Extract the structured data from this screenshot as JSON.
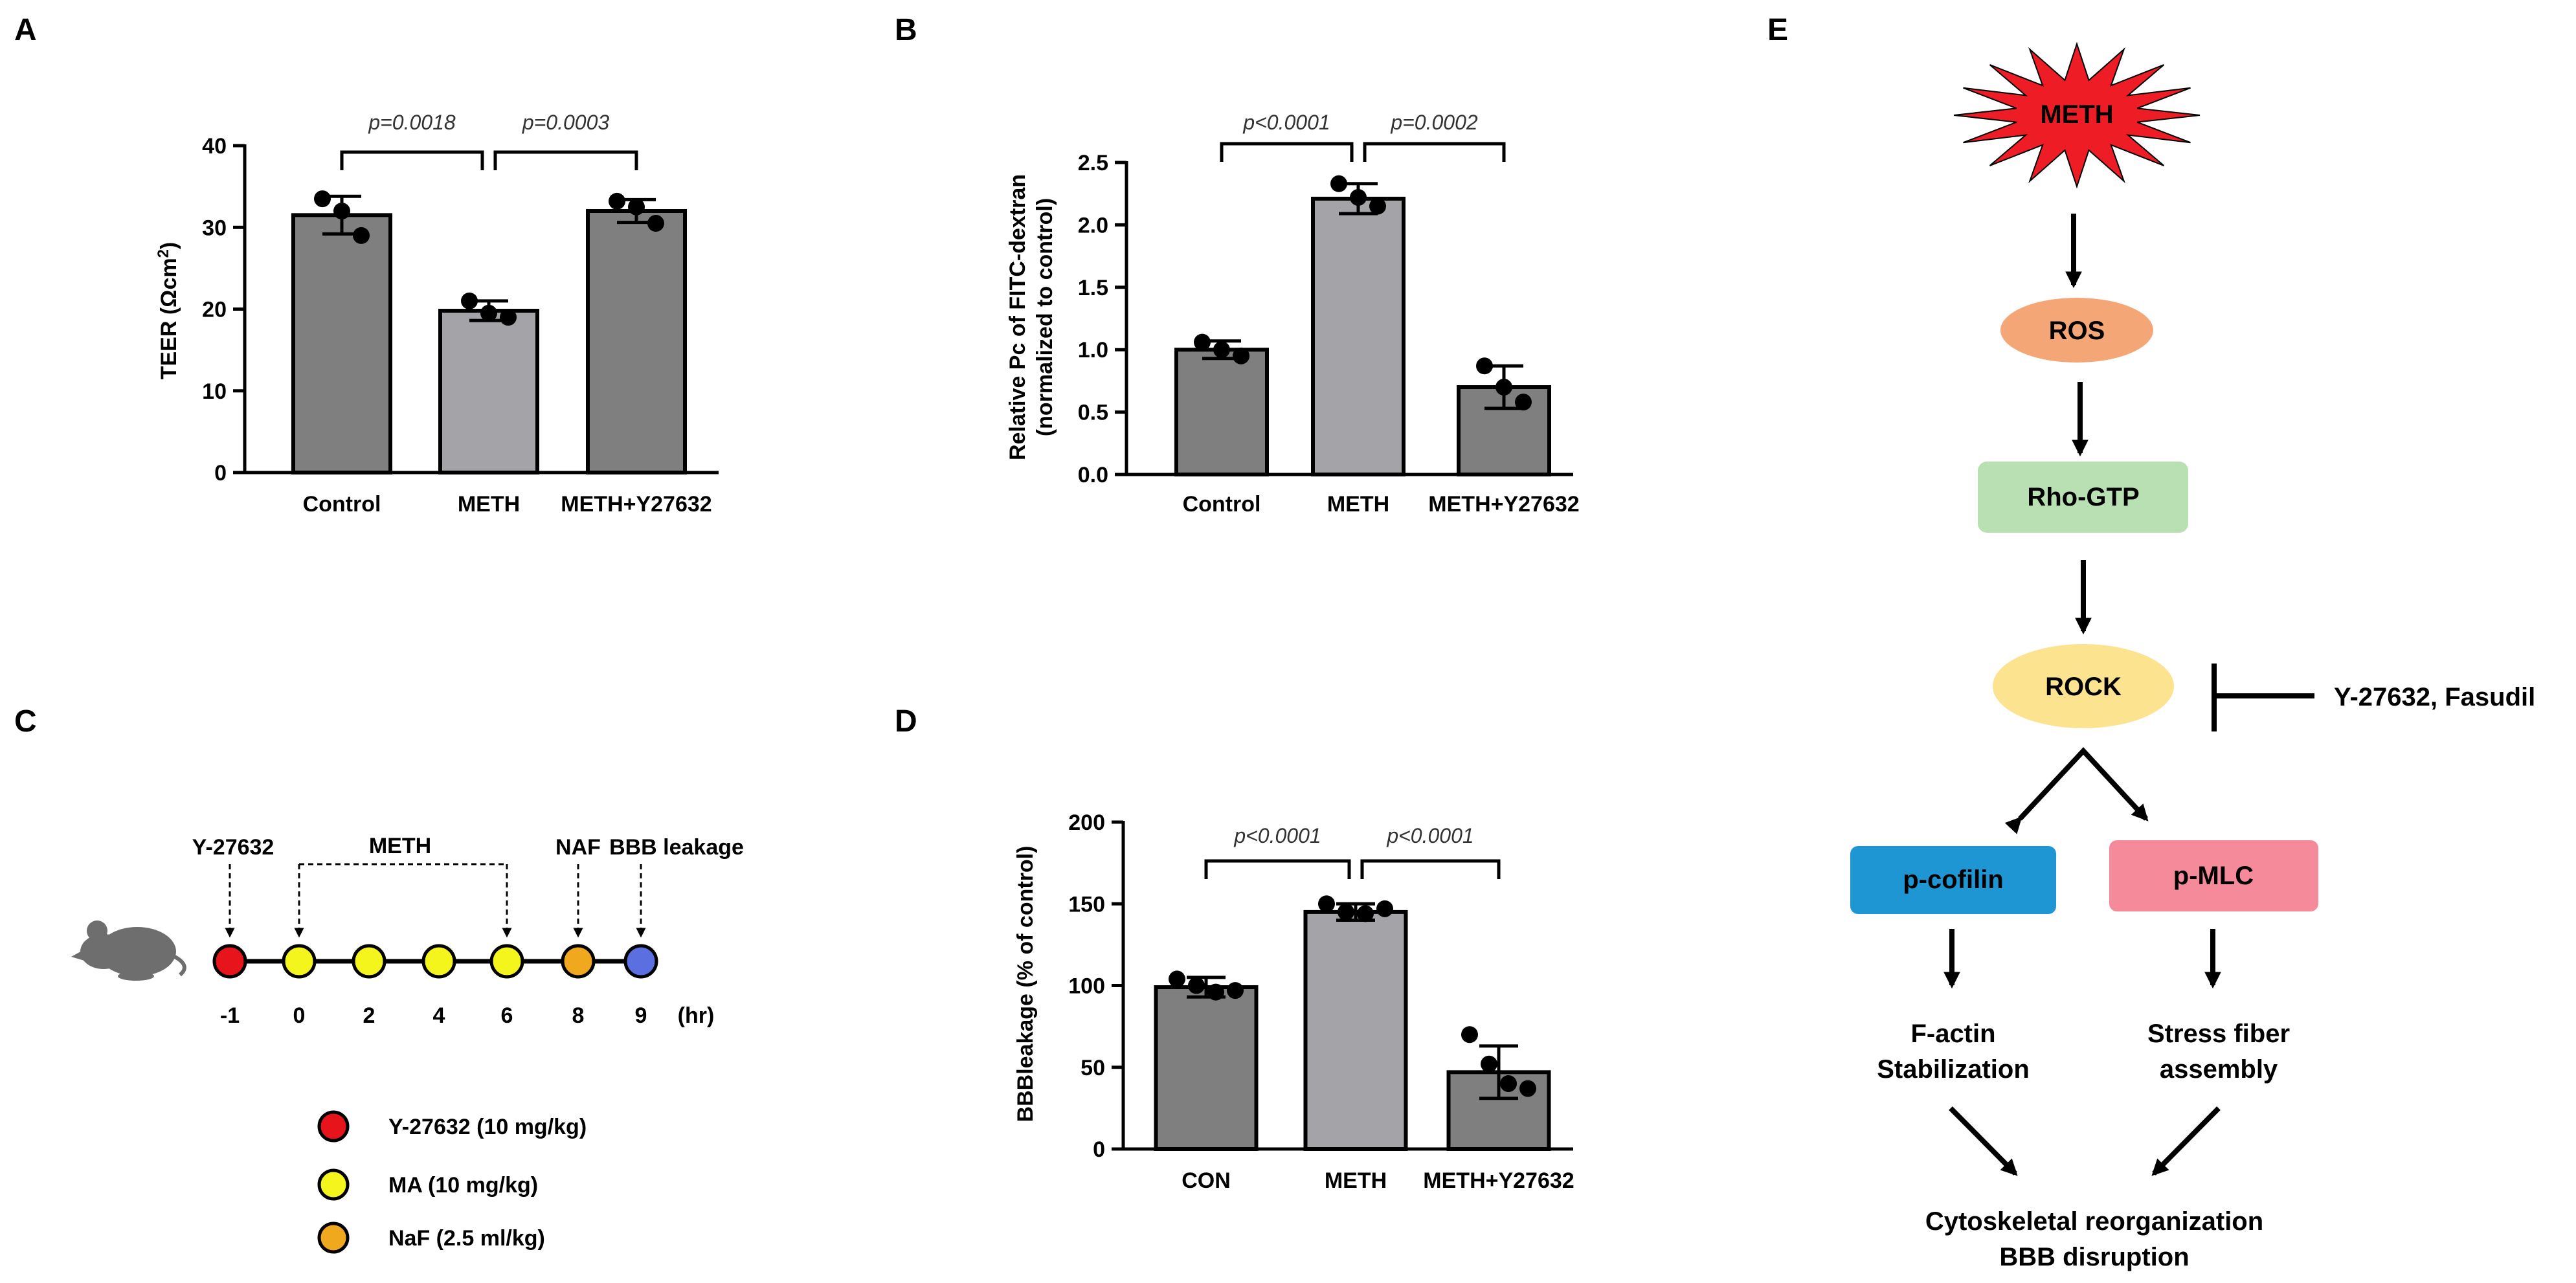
{
  "panel_labels": {
    "a": "A",
    "b": "B",
    "c": "C",
    "d": "D",
    "e": "E"
  },
  "colors": {
    "dark_bar": "#7f7f7f",
    "light_bar": "#a3a3a8",
    "red": "#e8141b",
    "yellow": "#f5f51e",
    "orange": "#f0a81e",
    "blue": "#5b6fe0",
    "ros": "#f5a676",
    "rho": "#b8e0b3",
    "rock": "#fbe38f",
    "cofilin": "#1d96d3",
    "pmlc": "#f48a9a"
  },
  "chart_data": [
    {
      "id": "A",
      "type": "bar",
      "categories": [
        "Control",
        "METH",
        "METH+Y27632"
      ],
      "values": [
        31.5,
        19.8,
        32.0
      ],
      "errors": [
        2.3,
        1.2,
        1.4
      ],
      "points": [
        [
          33.5,
          32.0,
          29.0
        ],
        [
          21.0,
          19.5,
          19.0
        ],
        [
          33.2,
          32.5,
          30.5
        ]
      ],
      "bar_shades": [
        "dark",
        "light",
        "dark"
      ],
      "ylabel_main": "TEER (Ωcm",
      "ylabel_sup": "2",
      "ylabel_tail": ")",
      "ylim": [
        0,
        40
      ],
      "yticks": [
        0,
        10,
        20,
        30,
        40
      ],
      "ytick_labels": [
        "0",
        "10",
        "20",
        "30",
        "40"
      ],
      "comparisons": [
        {
          "from": 0,
          "to": 1,
          "label": "p=0.0018"
        },
        {
          "from": 1,
          "to": 2,
          "label": "p=0.0003"
        }
      ]
    },
    {
      "id": "B",
      "type": "bar",
      "categories": [
        "Control",
        "METH",
        "METH+Y27632"
      ],
      "values": [
        1.0,
        2.21,
        0.7
      ],
      "errors": [
        0.07,
        0.12,
        0.17
      ],
      "points": [
        [
          1.06,
          1.0,
          0.95
        ],
        [
          2.33,
          2.22,
          2.15
        ],
        [
          0.87,
          0.7,
          0.58
        ]
      ],
      "bar_shades": [
        "dark",
        "light",
        "dark"
      ],
      "ylabel_line1": "Relative Pc of FITC-dextran",
      "ylabel_line2": "(normalized to control)",
      "ylim": [
        0,
        2.5
      ],
      "yticks": [
        0,
        0.5,
        1.0,
        1.5,
        2.0,
        2.5
      ],
      "ytick_labels": [
        "0.0",
        "0.5",
        "1.0",
        "1.5",
        "2.0",
        "2.5"
      ],
      "comparisons": [
        {
          "from": 0,
          "to": 1,
          "label": "p<0.0001"
        },
        {
          "from": 1,
          "to": 2,
          "label": "p=0.0002"
        }
      ]
    },
    {
      "id": "D",
      "type": "bar",
      "categories": [
        "CON",
        "METH",
        "METH+Y27632"
      ],
      "values": [
        99,
        145,
        47
      ],
      "errors": [
        6,
        5,
        16
      ],
      "points": [
        [
          104,
          100,
          96,
          97
        ],
        [
          150,
          145,
          144,
          147
        ],
        [
          70,
          52,
          40,
          37
        ]
      ],
      "bar_shades": [
        "dark",
        "light",
        "dark"
      ],
      "ylabel": "BBBleakage (% of control)",
      "ylim": [
        0,
        200
      ],
      "yticks": [
        0,
        50,
        100,
        150,
        200
      ],
      "ytick_labels": [
        "0",
        "50",
        "100",
        "150",
        "200"
      ],
      "comparisons": [
        {
          "from": 0,
          "to": 1,
          "label": "p<0.0001"
        },
        {
          "from": 1,
          "to": 2,
          "label": "p<0.0001"
        }
      ]
    }
  ],
  "timeline": {
    "labels": {
      "y27632": "Y-27632",
      "meth": "METH",
      "naf": "NAF",
      "bbb": "BBB leakage"
    },
    "ticks": [
      "-1",
      "0",
      "2",
      "4",
      "6",
      "8",
      "9"
    ],
    "unit": "(hr)",
    "dot_kinds": [
      "red",
      "yellow",
      "yellow",
      "yellow",
      "yellow",
      "orange",
      "blue"
    ],
    "legend": [
      {
        "kind": "red",
        "label": "Y-27632 (10 mg/kg)"
      },
      {
        "kind": "yellow",
        "label": "MA (10 mg/kg)"
      },
      {
        "kind": "orange",
        "label": "NaF (2.5 ml/kg)"
      }
    ]
  },
  "pathway": {
    "meth": "METH",
    "ros": "ROS",
    "rho": "Rho-GTP",
    "rock": "ROCK",
    "inhibitor": "Y-27632, Fasudil",
    "cofilin": "p-cofilin",
    "pmlc": "p-MLC",
    "factin_1": "F-actin",
    "factin_2": "Stabilization",
    "stress_1": "Stress fiber",
    "stress_2": "assembly",
    "out_1": "Cytoskeletal reorganization",
    "out_2": "BBB disruption"
  }
}
